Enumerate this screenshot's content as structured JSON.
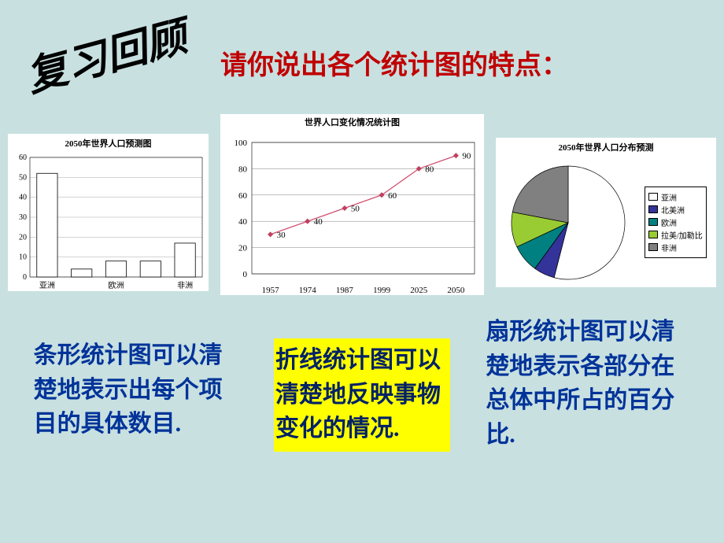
{
  "page_background": "#c8e0e0",
  "header": {
    "review_title": "复习回顾",
    "question": "请你说出各个统计图的特点："
  },
  "bar_chart": {
    "type": "bar",
    "title": "2050年世界人口预测图",
    "title_fontsize": 11,
    "categories": [
      "亚洲",
      "",
      "欧洲",
      "",
      "非洲"
    ],
    "values": [
      52,
      4,
      8,
      8,
      17
    ],
    "ylim": [
      0,
      60
    ],
    "ytick_step": 10,
    "bar_color": "#ffffff",
    "bar_border": "#000000",
    "grid_color": "#aaaaaa",
    "background_color": "#ffffff"
  },
  "line_chart": {
    "type": "line",
    "title": "世界人口变化情况统计图",
    "title_fontsize": 11,
    "x_labels": [
      "1957",
      "1974",
      "1987",
      "1999",
      "2025",
      "2050"
    ],
    "values": [
      30,
      40,
      50,
      60,
      80,
      90
    ],
    "ylim": [
      0,
      100
    ],
    "ytick_step": 20,
    "line_color": "#d05070",
    "marker_color": "#c04060",
    "grid_color": "#808080",
    "background_color": "#ffffff",
    "label_fontsize": 10
  },
  "pie_chart": {
    "type": "pie",
    "title": "2050年世界人口分布预测",
    "title_fontsize": 11,
    "slices": [
      {
        "label": "亚洲",
        "value": 54,
        "color": "#ffffff"
      },
      {
        "label": "北美洲",
        "value": 6,
        "color": "#333399"
      },
      {
        "label": "欧洲",
        "value": 8,
        "color": "#008080"
      },
      {
        "label": "拉美/加勒比",
        "value": 10,
        "color": "#99cc33"
      },
      {
        "label": "非洲",
        "value": 22,
        "color": "#808080"
      }
    ],
    "background_color": "#ffffff"
  },
  "descriptions": {
    "bar": "条形统计图可以清楚地表示出每个项目的具体数目.",
    "line": "折线统计图可以清楚地反映事物变化的情况.",
    "pie": "扇形统计图可以清楚地表示各部分在总体中所占的百分比."
  }
}
